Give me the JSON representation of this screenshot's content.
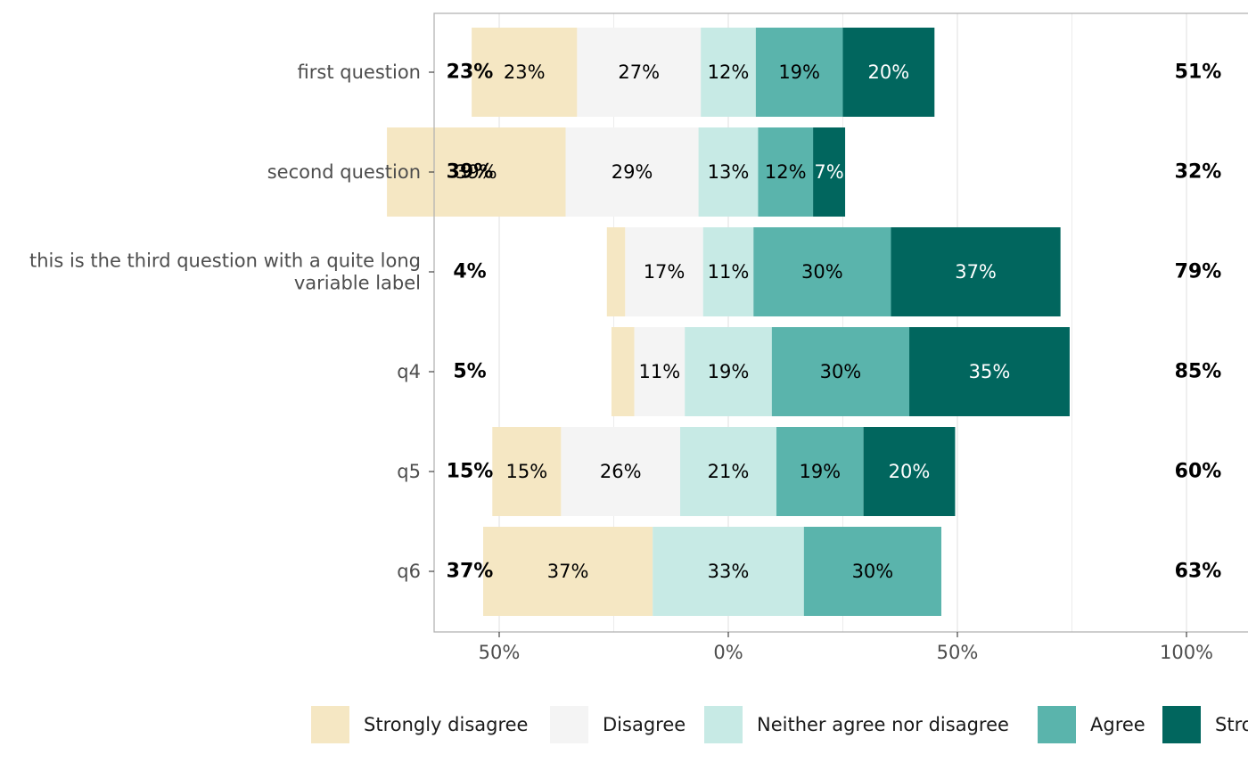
{
  "chart_data": {
    "type": "bar",
    "orientation": "horizontal-diverging",
    "title": "",
    "xlabel": "",
    "ylabel": "",
    "xlim": [
      -0.6,
      1.0
    ],
    "x_ticks": [
      {
        "value": -0.5,
        "label": "50%"
      },
      {
        "value": 0,
        "label": "0%"
      },
      {
        "value": 0.5,
        "label": "50%"
      },
      {
        "value": 1.0,
        "label": "100%"
      }
    ],
    "grid": true,
    "legend_position": "bottom",
    "neutral_split": "centered",
    "series": [
      {
        "name": "Strongly disagree",
        "color": "#F5E7C3"
      },
      {
        "name": "Disagree",
        "color": "#F4F4F4"
      },
      {
        "name": "Neither agree nor disagree",
        "color": "#C7EAE5"
      },
      {
        "name": "Agree",
        "color": "#5AB4AC"
      },
      {
        "name": "Strongly agree",
        "color": "#01665E"
      }
    ],
    "categories": [
      {
        "label": [
          "first question"
        ],
        "values": [
          0.23,
          0.27,
          0.12,
          0.19,
          0.2
        ],
        "labels": [
          "23%",
          "27%",
          "12%",
          "19%",
          "20%"
        ],
        "left_total": "23%",
        "right_total": "51%"
      },
      {
        "label": [
          "second question"
        ],
        "values": [
          0.39,
          0.29,
          0.13,
          0.12,
          0.07
        ],
        "labels": [
          "39%",
          "29%",
          "13%",
          "12%",
          "7%"
        ],
        "left_total": "39%",
        "right_total": "32%"
      },
      {
        "label": [
          "this is the third question with a quite long",
          "variable label"
        ],
        "values": [
          0.04,
          0.17,
          0.11,
          0.3,
          0.37
        ],
        "labels": [
          "",
          "17%",
          "11%",
          "30%",
          "37%"
        ],
        "left_total": "4%",
        "right_total": "79%"
      },
      {
        "label": [
          "q4"
        ],
        "values": [
          0.05,
          0.11,
          0.19,
          0.3,
          0.35
        ],
        "labels": [
          "",
          "11%",
          "19%",
          "30%",
          "35%"
        ],
        "left_total": "5%",
        "right_total": "85%"
      },
      {
        "label": [
          "q5"
        ],
        "values": [
          0.15,
          0.26,
          0.21,
          0.19,
          0.2
        ],
        "labels": [
          "15%",
          "26%",
          "21%",
          "19%",
          "20%"
        ],
        "left_total": "15%",
        "right_total": "60%"
      },
      {
        "label": [
          "q6"
        ],
        "values": [
          0.37,
          0.0,
          0.33,
          0.3,
          0.0
        ],
        "labels": [
          "37%",
          "",
          "33%",
          "30%",
          ""
        ],
        "left_total": "37%",
        "right_total": "63%"
      }
    ]
  }
}
